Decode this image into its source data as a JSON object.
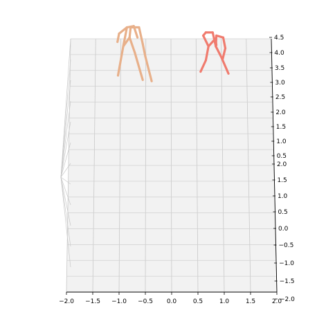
{
  "chart_data": {
    "type": "line",
    "title": "",
    "xlabel": "",
    "ylabel": "",
    "zlabel": "",
    "grid": true,
    "x_ticks": [
      "−2.0",
      "−1.5",
      "−1.0",
      "−0.5",
      "0.0",
      "0.5",
      "1.0",
      "1.5",
      "2.0"
    ],
    "y_ticks": [
      "−1.5",
      "−1.0",
      "−0.5",
      "0.0",
      "0.5",
      "1.0",
      "1.5",
      "2.0"
    ],
    "z_ticks": [
      "−2.0",
      "0.5",
      "1.0",
      "1.5",
      "2.0",
      "2.5",
      "3.0",
      "3.5",
      "4.0",
      "4.5"
    ],
    "xlim": [
      -2.0,
      2.0
    ],
    "ylim": [
      -2.0,
      2.0
    ],
    "zlim": [
      -2.0,
      4.5
    ],
    "series": [
      {
        "color": "#e8b08a",
        "points": [
          [
            -1.02,
            1.42
          ],
          [
            -1.0,
            1.85
          ],
          [
            -0.95,
            2.12
          ],
          [
            -0.78,
            2.08
          ],
          [
            -0.7,
            1.7
          ],
          [
            -0.55,
            1.35
          ],
          [
            -0.5,
            1.95
          ],
          [
            -0.45,
            1.65
          ],
          [
            -0.38,
            1.33
          ]
        ],
        "segments": [
          [
            [
              -1.02,
              1.42
            ],
            [
              -0.92,
              1.88
            ]
          ],
          [
            [
              -0.92,
              1.88
            ],
            [
              -0.85,
              2.18
            ]
          ],
          [
            [
              -0.85,
              2.18
            ],
            [
              -0.72,
              2.2
            ]
          ],
          [
            [
              -0.72,
              2.2
            ],
            [
              -0.65,
              2.02
            ]
          ],
          [
            [
              -0.92,
              1.88
            ],
            [
              -0.8,
              2.02
            ]
          ],
          [
            [
              -0.8,
              2.02
            ],
            [
              -0.7,
              1.78
            ]
          ],
          [
            [
              -0.7,
              1.78
            ],
            [
              -0.55,
              1.35
            ]
          ],
          [
            [
              -0.8,
              2.02
            ],
            [
              -0.78,
              2.18
            ]
          ],
          [
            [
              -0.78,
              2.18
            ],
            [
              -0.62,
              2.18
            ]
          ],
          [
            [
              -0.62,
              2.18
            ],
            [
              -0.55,
              1.92
            ]
          ],
          [
            [
              -0.55,
              1.92
            ],
            [
              -0.5,
              1.72
            ]
          ],
          [
            [
              -0.5,
              1.72
            ],
            [
              -0.38,
              1.33
            ]
          ],
          [
            [
              -0.85,
              2.18
            ],
            [
              -1.0,
              2.08
            ]
          ],
          [
            [
              -1.0,
              2.08
            ],
            [
              -1.03,
              1.95
            ]
          ]
        ]
      },
      {
        "color": "#f07b6e",
        "points": [
          [
            0.55,
            1.5
          ],
          [
            0.65,
            1.95
          ],
          [
            0.7,
            2.05
          ],
          [
            0.82,
            1.72
          ],
          [
            1.02,
            1.8
          ],
          [
            1.08,
            1.45
          ]
        ],
        "segments": [
          [
            [
              0.55,
              1.48
            ],
            [
              0.65,
              1.66
            ]
          ],
          [
            [
              0.65,
              1.66
            ],
            [
              0.7,
              1.88
            ]
          ],
          [
            [
              0.7,
              1.88
            ],
            [
              0.83,
              2.0
            ]
          ],
          [
            [
              0.83,
              2.0
            ],
            [
              0.85,
              1.9
            ]
          ],
          [
            [
              0.7,
              1.88
            ],
            [
              0.6,
              2.05
            ]
          ],
          [
            [
              0.6,
              2.05
            ],
            [
              0.65,
              2.1
            ]
          ],
          [
            [
              0.65,
              2.1
            ],
            [
              0.78,
              2.1
            ]
          ],
          [
            [
              0.78,
              2.1
            ],
            [
              0.84,
              1.88
            ]
          ],
          [
            [
              0.84,
              1.88
            ],
            [
              0.95,
              1.7
            ]
          ],
          [
            [
              0.95,
              1.7
            ],
            [
              1.08,
              1.45
            ]
          ],
          [
            [
              0.84,
              1.88
            ],
            [
              0.85,
              2.05
            ]
          ],
          [
            [
              0.85,
              2.05
            ],
            [
              0.98,
              2.02
            ]
          ],
          [
            [
              0.98,
              2.02
            ],
            [
              1.02,
              1.85
            ]
          ],
          [
            [
              1.02,
              1.85
            ],
            [
              0.97,
              1.68
            ]
          ]
        ]
      }
    ]
  }
}
